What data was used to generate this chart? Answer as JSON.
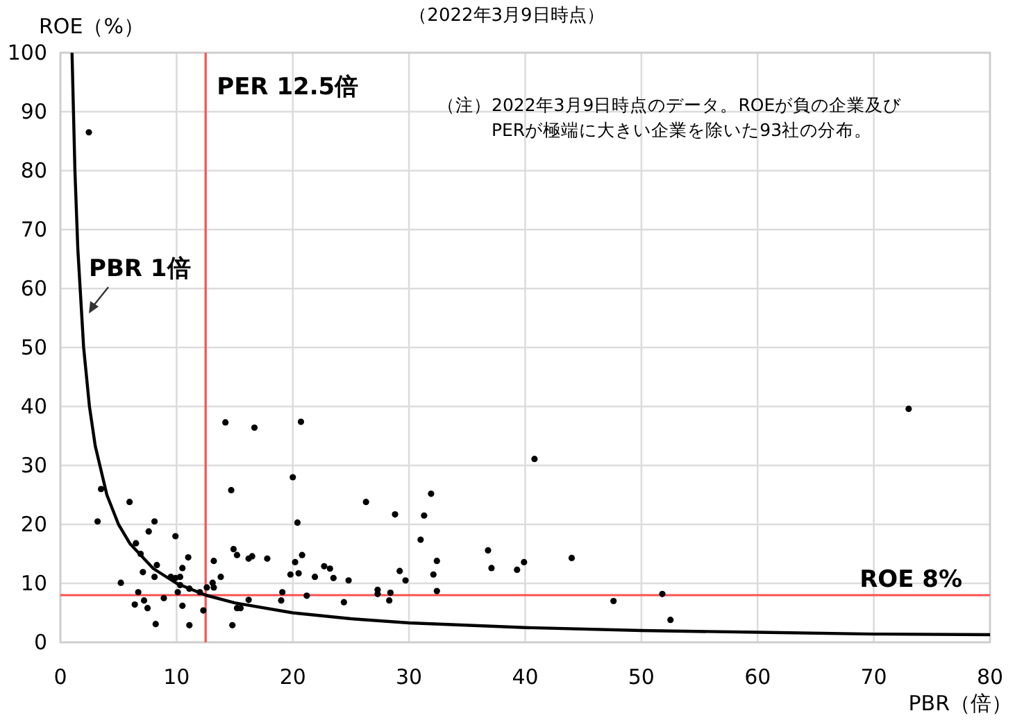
{
  "chart_data": {
    "type": "scatter",
    "title": "（2022年3月9日時点）",
    "xlabel": "PBR（倍）",
    "ylabel": "ROE（%）",
    "annotations": [
      "（注）2022年3月9日時点のデータ。ROEが負の企業及び\nPERが極端に大きい企業を除いた93社の分布。"
    ],
    "xlim": [
      0,
      80
    ],
    "ylim": [
      0,
      100
    ],
    "xticks": [
      0,
      10,
      20,
      30,
      40,
      50,
      60,
      70,
      80
    ],
    "yticks": [
      0,
      10,
      20,
      30,
      40,
      50,
      60,
      70,
      80,
      90,
      100
    ],
    "grid": true,
    "ref_lines": [
      {
        "axis": "x",
        "value": 12.5,
        "label": "PER 12.5倍",
        "color": "#ff5050"
      },
      {
        "axis": "y",
        "value": 8,
        "label": "ROE 8%",
        "color": "#ff5050"
      }
    ],
    "series": [
      {
        "color": "#000000",
        "marker": "circle",
        "x": [
          2.45,
          3.5,
          3.2,
          5.95,
          5.2,
          6.5,
          6.9,
          8.1,
          7.6,
          7.1,
          8.3,
          6.7,
          8.1,
          6.4,
          7.2,
          7.5,
          8.2,
          8.9,
          9.9,
          9.5,
          9.9,
          10.3,
          10.5,
          11.0,
          10.3,
          10.1,
          10.5,
          11.1,
          11.1,
          12.0,
          12.3,
          12.6,
          13.2,
          13.1,
          13.2,
          13.8,
          14.2,
          14.7,
          16.7,
          14.9,
          15.2,
          16.2,
          16.5,
          17.8,
          16.2,
          15.2,
          15.5,
          14.8,
          20.7,
          20.0,
          20.4,
          20.8,
          20.2,
          20.5,
          19.8,
          19.1,
          19.0,
          21.2,
          21.9,
          22.7,
          23.2,
          23.5,
          24.8,
          24.4,
          26.3,
          28.8,
          31.9,
          31.3,
          31.0,
          32.4,
          32.1,
          32.4,
          29.2,
          29.7,
          27.3,
          27.3,
          28.4,
          28.3,
          40.8,
          36.8,
          37.1,
          39.9,
          39.3,
          44.0,
          47.6,
          51.8,
          52.5,
          73.0
        ],
        "values": [
          86.5,
          26.0,
          20.5,
          23.8,
          10.1,
          16.8,
          15.0,
          20.5,
          18.8,
          11.9,
          13.1,
          8.5,
          11.1,
          6.4,
          7.1,
          5.8,
          3.1,
          7.5,
          18.0,
          11.1,
          10.9,
          11.1,
          12.6,
          14.4,
          9.7,
          8.5,
          6.2,
          2.9,
          9.1,
          8.5,
          5.4,
          9.3,
          13.8,
          10.1,
          9.3,
          11.1,
          37.3,
          25.8,
          36.4,
          15.8,
          14.8,
          14.2,
          14.6,
          14.2,
          7.2,
          5.8,
          5.8,
          2.9,
          37.4,
          28.0,
          20.3,
          14.8,
          13.6,
          11.7,
          11.5,
          8.5,
          7.1,
          7.9,
          11.1,
          12.9,
          12.5,
          10.9,
          10.5,
          6.8,
          23.8,
          21.7,
          25.2,
          21.5,
          17.4,
          13.8,
          11.5,
          8.7,
          12.1,
          10.5,
          8.9,
          8.2,
          8.4,
          7.1,
          31.1,
          15.6,
          12.6,
          13.6,
          12.3,
          14.3,
          7.0,
          8.2,
          3.8,
          39.6
        ]
      },
      {
        "type": "line",
        "name": "PBR 1倍",
        "color": "#000000",
        "marker": "none",
        "line_style": "solid",
        "x": [
          1,
          1.25,
          1.5,
          2,
          2.5,
          3,
          4,
          5,
          6,
          8,
          10,
          12.5,
          15,
          20,
          25,
          30,
          40,
          50,
          60,
          70,
          80
        ],
        "values": [
          100,
          80,
          66.7,
          50,
          40,
          33.3,
          25,
          20,
          16.7,
          12.5,
          10,
          8,
          6.7,
          5,
          4,
          3.3,
          2.5,
          2,
          1.7,
          1.4,
          1.3
        ]
      }
    ]
  }
}
